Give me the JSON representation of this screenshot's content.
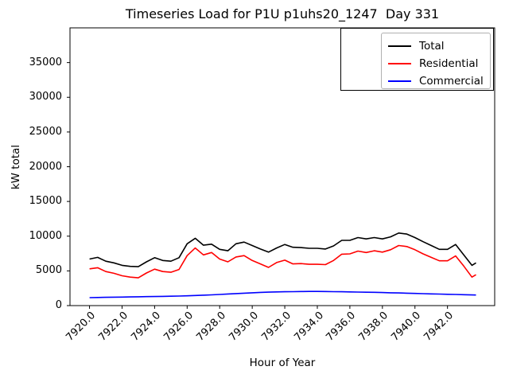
{
  "chart_data": {
    "type": "line",
    "title": "Timeseries Load for P1U p1uhs20_1247  Day 331",
    "xlabel": "Hour of Year",
    "ylabel": "kW total",
    "grid": false,
    "legend_position": "upper right",
    "xlim": [
      7918.8,
      7944.9
    ],
    "ylim": [
      0,
      40000
    ],
    "x_ticks": [
      7920,
      7922,
      7924,
      7926,
      7928,
      7930,
      7932,
      7934,
      7936,
      7938,
      7940,
      7942
    ],
    "xtick_labels": [
      "7920.0",
      "7922.0",
      "7924.0",
      "7926.0",
      "7928.0",
      "7930.0",
      "7932.0",
      "7934.0",
      "7936.0",
      "7938.0",
      "7940.0",
      "7942.0"
    ],
    "y_ticks": [
      0,
      5000,
      10000,
      15000,
      20000,
      25000,
      30000,
      35000
    ],
    "ytick_labels": [
      "0",
      "5000",
      "10000",
      "15000",
      "20000",
      "25000",
      "30000",
      "35000"
    ],
    "x": [
      7920,
      7920.5,
      7921,
      7921.5,
      7922,
      7922.5,
      7923,
      7923.5,
      7924,
      7924.5,
      7925,
      7925.5,
      7926,
      7926.5,
      7927,
      7927.5,
      7928,
      7928.5,
      7929,
      7929.5,
      7930,
      7930.5,
      7931,
      7931.5,
      7932,
      7932.5,
      7933,
      7933.5,
      7934,
      7934.5,
      7935,
      7935.5,
      7936,
      7936.5,
      7937,
      7937.5,
      7938,
      7938.5,
      7939,
      7939.5,
      7940,
      7940.5,
      7941,
      7941.5,
      7942,
      7942.5,
      7943,
      7943.5,
      7943.75
    ],
    "series": [
      {
        "name": "Total",
        "color": "#000000",
        "values": [
          6700,
          6950,
          6400,
          6150,
          5800,
          5650,
          5600,
          6300,
          6900,
          6500,
          6400,
          6900,
          8900,
          9700,
          8700,
          8850,
          8100,
          7900,
          8900,
          9150,
          8650,
          8150,
          7700,
          8300,
          8800,
          8400,
          8350,
          8250,
          8250,
          8150,
          8600,
          9400,
          9400,
          9800,
          9600,
          9800,
          9600,
          9900,
          10450,
          10300,
          9800,
          9200,
          8650,
          8100,
          8100,
          8800,
          7300,
          5800,
          6150
        ]
      },
      {
        "name": "Residential",
        "color": "#ff0000",
        "values": [
          5300,
          5450,
          4900,
          4650,
          4300,
          4100,
          4000,
          4700,
          5250,
          4900,
          4800,
          5200,
          7200,
          8300,
          7300,
          7650,
          6700,
          6300,
          7000,
          7200,
          6500,
          6000,
          5500,
          6200,
          6550,
          6000,
          6050,
          5950,
          5950,
          5900,
          6500,
          7400,
          7450,
          7850,
          7650,
          7900,
          7700,
          8050,
          8650,
          8500,
          8050,
          7450,
          6950,
          6450,
          6450,
          7150,
          5700,
          4100,
          4450
        ]
      },
      {
        "name": "Commercial",
        "color": "#0000ff",
        "values": [
          1150,
          1170,
          1190,
          1210,
          1230,
          1250,
          1270,
          1290,
          1310,
          1330,
          1350,
          1380,
          1410,
          1450,
          1500,
          1550,
          1610,
          1670,
          1730,
          1790,
          1850,
          1900,
          1940,
          1970,
          1990,
          2010,
          2030,
          2040,
          2040,
          2030,
          2010,
          1990,
          1970,
          1950,
          1930,
          1910,
          1880,
          1850,
          1820,
          1790,
          1750,
          1720,
          1690,
          1660,
          1630,
          1600,
          1570,
          1540,
          1530
        ]
      }
    ]
  }
}
